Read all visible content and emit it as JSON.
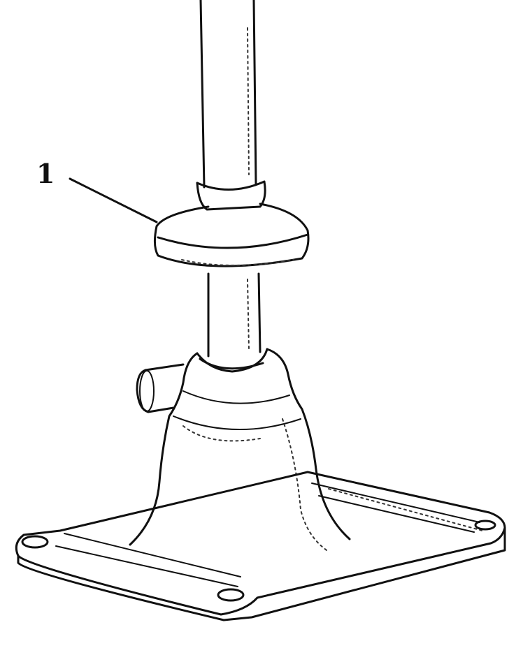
{
  "diagram": {
    "callouts": [
      {
        "label": "1"
      }
    ]
  }
}
